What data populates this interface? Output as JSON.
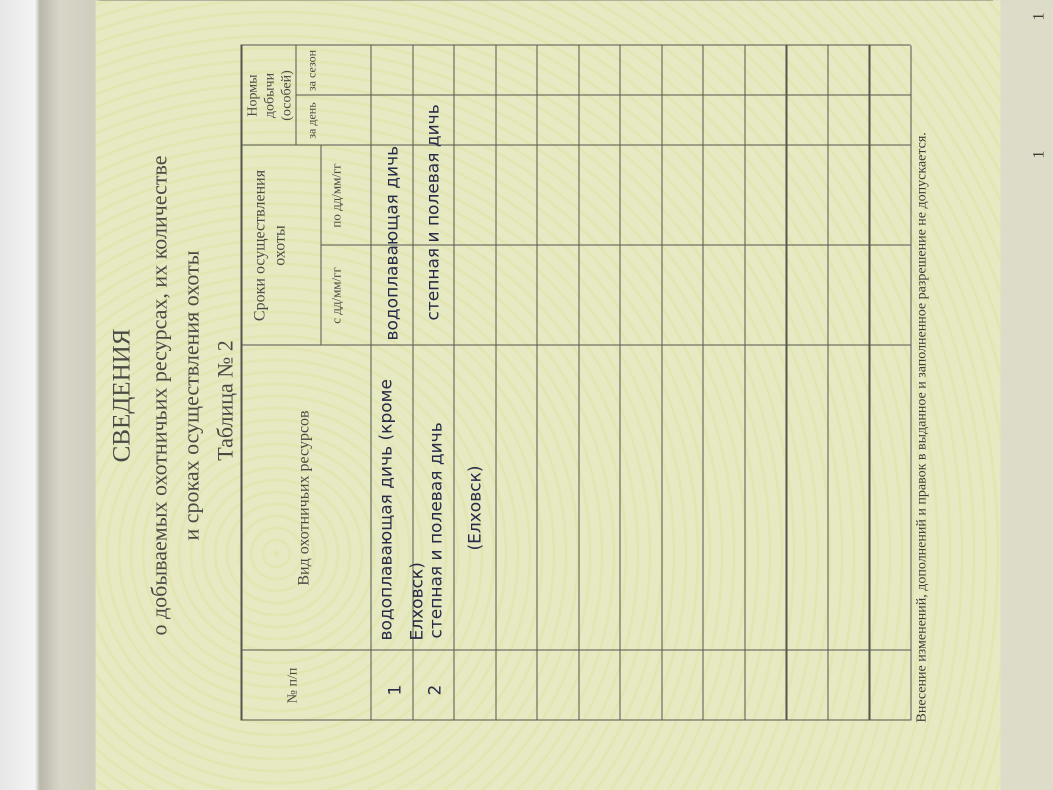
{
  "title": "СВЕДЕНИЯ",
  "subtitle_lines": [
    "о добываемых охотничьих ресурсах, их количестве",
    "и сроках осуществления охоты"
  ],
  "table_label": "Таблица № 2",
  "headers": {
    "num": "№ п/п",
    "kind": "Вид охотничьих ресурсов",
    "period": "Сроки осуществления охоты",
    "from": "с дд/мм/гг",
    "to": "по дд/мм/гг",
    "norms": "Нормы добычи (особей)",
    "per_day": "за день",
    "per_season": "за сезон"
  },
  "entries": [
    {
      "num": "1",
      "kind_line1": "водоплавающая дичь (кроме",
      "kind_line2": "Елховск)",
      "period_text": "водоплавающая дичь"
    },
    {
      "num": "2",
      "kind_line1": "степная и полевая дичь",
      "kind_line2": "(Елховск)",
      "period_text": "степная и полевая дичь"
    }
  ],
  "empty_rows": 11,
  "footer": "Внесение изменений, дополнений и правок в выданное и заполненное разрешение не допускается.",
  "margin_marks": [
    "1",
    "1"
  ],
  "colors": {
    "paper": "#e7e9c3",
    "ink": "#262b48",
    "lines": "#55554c"
  }
}
